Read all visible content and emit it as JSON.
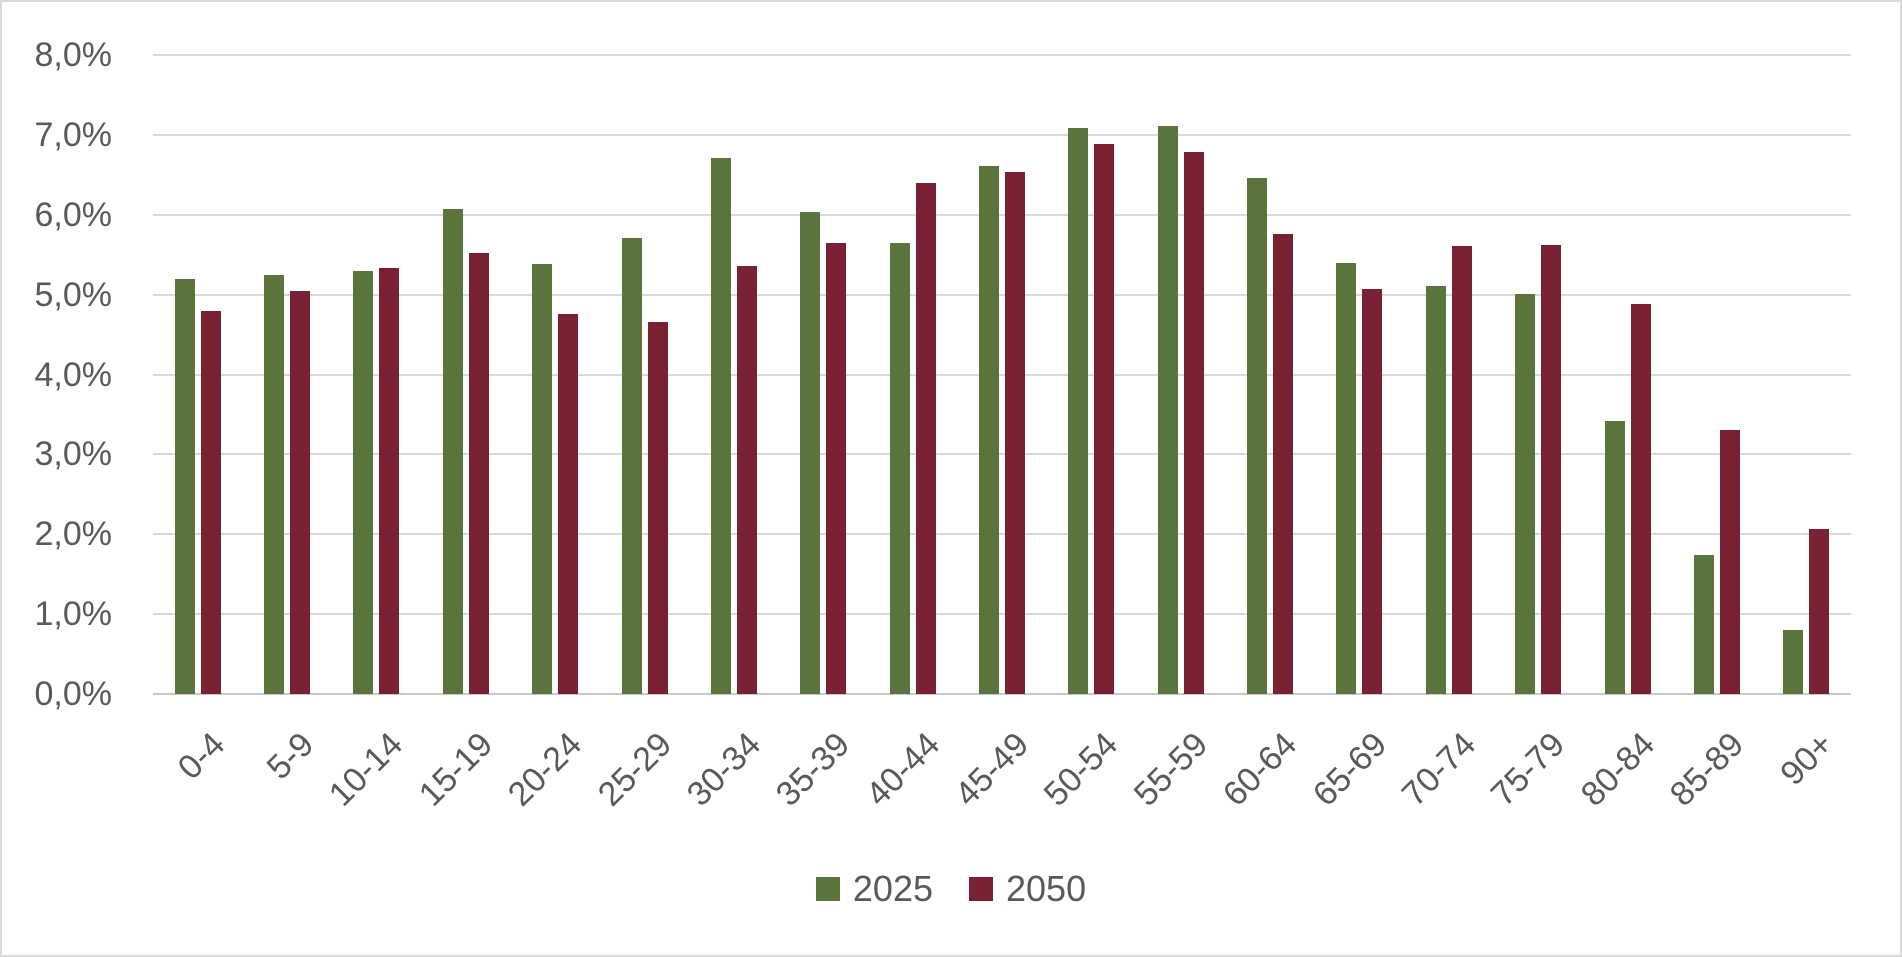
{
  "chart_data": {
    "type": "bar",
    "title": "",
    "xlabel": "",
    "ylabel": "",
    "categories": [
      "0-4",
      "5-9",
      "10-14",
      "15-19",
      "20-24",
      "25-29",
      "30-34",
      "35-39",
      "40-44",
      "45-49",
      "50-54",
      "55-59",
      "60-64",
      "65-69",
      "70-74",
      "75-79",
      "80-84",
      "85-89",
      "90+"
    ],
    "series": [
      {
        "name": "2025",
        "color": "#5A753C",
        "values": [
          5.2,
          5.25,
          5.29,
          6.07,
          5.38,
          5.71,
          6.71,
          6.04,
          5.65,
          6.61,
          7.09,
          7.11,
          6.46,
          5.4,
          5.11,
          5.01,
          3.42,
          1.74,
          0.8
        ]
      },
      {
        "name": "2050",
        "color": "#7A2033",
        "values": [
          4.8,
          5.05,
          5.33,
          5.52,
          4.76,
          4.66,
          5.36,
          5.65,
          6.4,
          6.54,
          6.88,
          6.78,
          5.76,
          5.07,
          5.61,
          5.62,
          4.88,
          3.31,
          2.07
        ]
      }
    ],
    "ylim": [
      0,
      8
    ],
    "y_ticks": {
      "values": [
        0,
        1,
        2,
        3,
        4,
        5,
        6,
        7,
        8
      ],
      "labels": [
        "0,0%",
        "1,0%",
        "2,0%",
        "3,0%",
        "4,0%",
        "5,0%",
        "6,0%",
        "7,0%",
        "8,0%"
      ]
    },
    "decimal_separator": ",",
    "grid": "horizontal",
    "legend_position": "bottom-center"
  },
  "style": {
    "background": "#FFFFFF",
    "border_color": "#D9D9D9",
    "grid_color": "#D9D9D9",
    "axis_line_color": "#C8C8C8",
    "text_color": "#595959"
  }
}
